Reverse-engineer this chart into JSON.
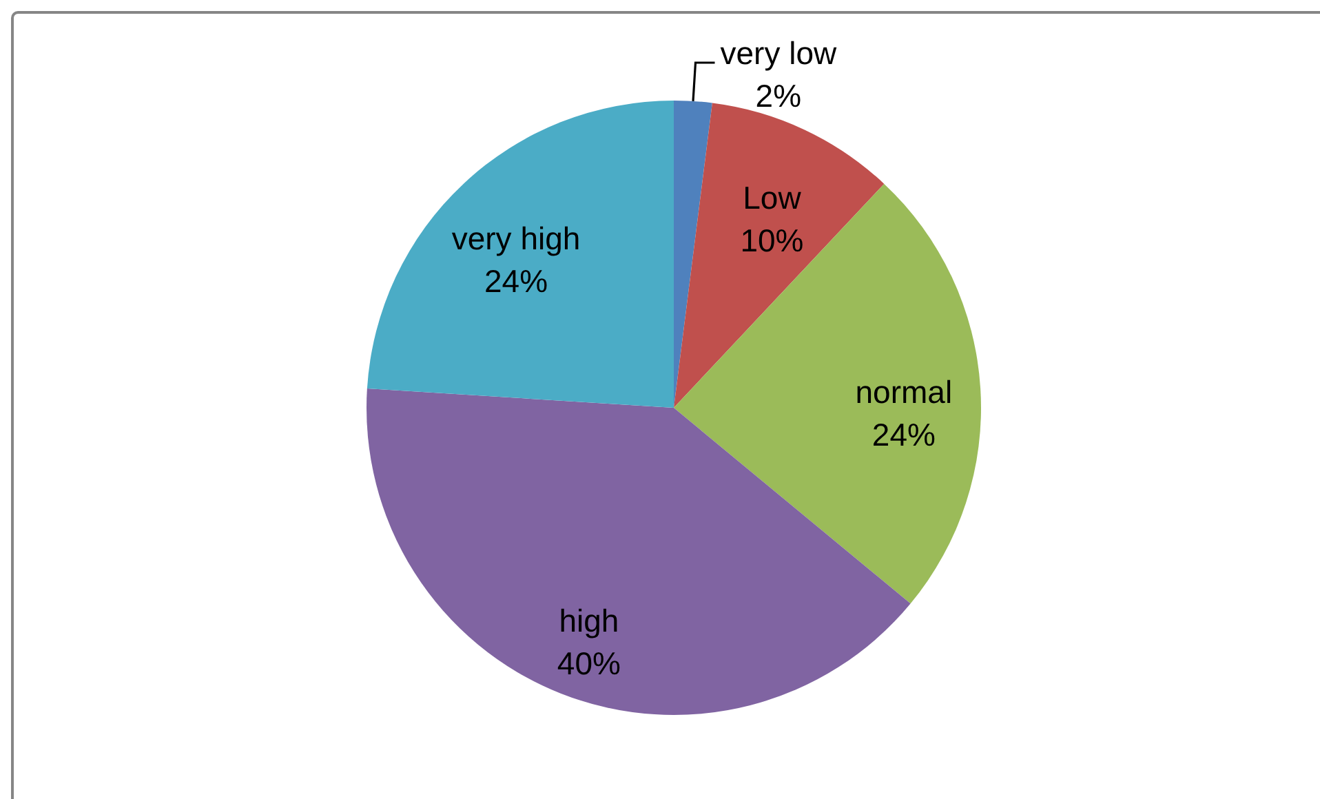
{
  "chart_data": {
    "type": "pie",
    "categories": [
      "very low",
      "Low",
      "normal",
      "high",
      "very high"
    ],
    "values": [
      2,
      10,
      24,
      40,
      24
    ],
    "value_labels": [
      "2%",
      "10%",
      "24%",
      "40%",
      "24%"
    ],
    "colors": [
      "#4f81bd",
      "#c0504d",
      "#9bbb59",
      "#8064a2",
      "#4bacc6"
    ]
  }
}
